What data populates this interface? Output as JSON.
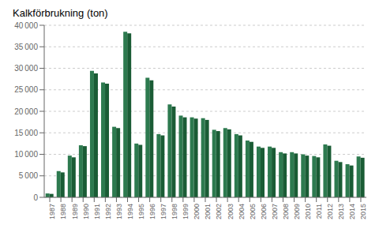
{
  "chart_data": {
    "type": "bar",
    "title": "Kalkförbrukning (ton)",
    "categories": [
      "1987",
      "1988",
      "1989",
      "1990",
      "1991",
      "1992",
      "1993",
      "1994",
      "1995",
      "1996",
      "1997",
      "1998",
      "1999",
      "2000",
      "2001",
      "2002",
      "2003",
      "2004",
      "2005",
      "2006",
      "2007",
      "2008",
      "2009",
      "2010",
      "2011",
      "2012",
      "2013",
      "2014",
      "2015"
    ],
    "series": [
      {
        "color": "#2d7a4f",
        "values": [
          900,
          6100,
          9700,
          12100,
          29400,
          26700,
          16400,
          38500,
          12500,
          27800,
          14700,
          21600,
          19000,
          18600,
          18400,
          15700,
          16100,
          14700,
          13200,
          11800,
          11800,
          10500,
          10500,
          10000,
          9600,
          12300,
          8500,
          7700,
          9500
        ]
      },
      {
        "color": "#1a5c35",
        "values": [
          800,
          5800,
          9300,
          11900,
          28800,
          26400,
          16100,
          38100,
          12200,
          27200,
          14400,
          21100,
          18600,
          18300,
          18000,
          15400,
          15800,
          14400,
          12900,
          11500,
          11500,
          10200,
          10200,
          9700,
          9300,
          12000,
          8200,
          7400,
          9200
        ]
      }
    ],
    "ylim": [
      0,
      40000
    ],
    "yticks": [
      0,
      {
        "value": 5000,
        "label": "5 000"
      },
      {
        "value": 10000,
        "label": "10 000"
      },
      {
        "value": 15000,
        "label": "15 000"
      },
      {
        "value": 20000,
        "label": "20 000"
      },
      {
        "value": 25000,
        "label": "25 000"
      },
      {
        "value": 30000,
        "label": "30 000"
      },
      {
        "value": 35000,
        "label": "35 000"
      },
      {
        "value": 40000,
        "label": "40 000"
      }
    ],
    "grid": true
  }
}
